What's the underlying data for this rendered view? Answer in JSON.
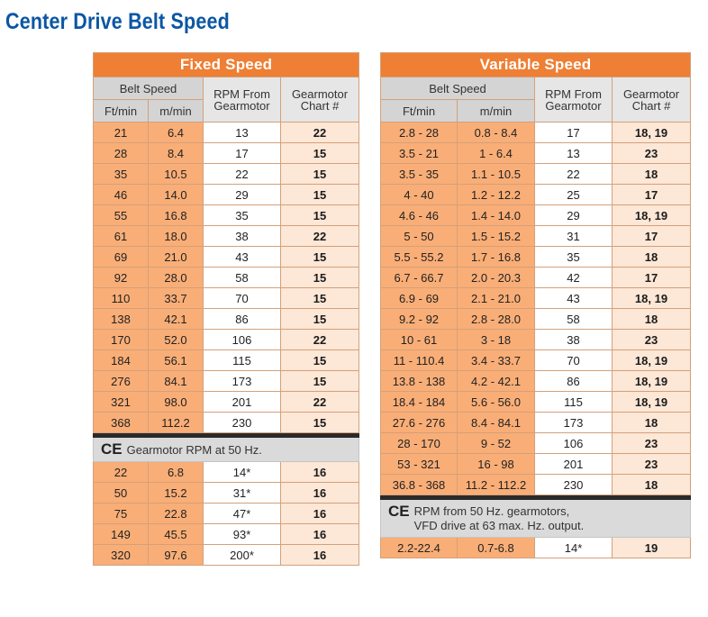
{
  "page_title": "Center Drive Belt Speed",
  "fixed": {
    "title": "Fixed Speed",
    "header": {
      "belt_speed": "Belt Speed",
      "col_ft": "Ft/min",
      "col_m": "m/min",
      "rpm": "RPM From Gearmotor",
      "chart": "Gearmotor Chart #"
    },
    "rows": [
      [
        "21",
        "6.4",
        "13",
        "22"
      ],
      [
        "28",
        "8.4",
        "17",
        "15"
      ],
      [
        "35",
        "10.5",
        "22",
        "15"
      ],
      [
        "46",
        "14.0",
        "29",
        "15"
      ],
      [
        "55",
        "16.8",
        "35",
        "15"
      ],
      [
        "61",
        "18.0",
        "38",
        "22"
      ],
      [
        "69",
        "21.0",
        "43",
        "15"
      ],
      [
        "92",
        "28.0",
        "58",
        "15"
      ],
      [
        "110",
        "33.7",
        "70",
        "15"
      ],
      [
        "138",
        "42.1",
        "86",
        "15"
      ],
      [
        "170",
        "52.0",
        "106",
        "22"
      ],
      [
        "184",
        "56.1",
        "115",
        "15"
      ],
      [
        "276",
        "84.1",
        "173",
        "15"
      ],
      [
        "321",
        "98.0",
        "201",
        "22"
      ],
      [
        "368",
        "112.2",
        "230",
        "15"
      ]
    ],
    "ce_symbol": "CE",
    "note": "Gearmotor RPM at 50 Hz.",
    "ce_rows": [
      [
        "22",
        "6.8",
        "14*",
        "16"
      ],
      [
        "50",
        "15.2",
        "31*",
        "16"
      ],
      [
        "75",
        "22.8",
        "47*",
        "16"
      ],
      [
        "149",
        "45.5",
        "93*",
        "16"
      ],
      [
        "320",
        "97.6",
        "200*",
        "16"
      ]
    ]
  },
  "variable": {
    "title": "Variable Speed",
    "header": {
      "belt_speed": "Belt Speed",
      "col_ft": "Ft/min",
      "col_m": "m/min",
      "rpm": "RPM From Gearmotor",
      "chart": "Gearmotor Chart #"
    },
    "rows": [
      [
        "2.8 - 28",
        "0.8 - 8.4",
        "17",
        "18, 19"
      ],
      [
        "3.5 - 21",
        "1 - 6.4",
        "13",
        "23"
      ],
      [
        "3.5 - 35",
        "1.1 - 10.5",
        "22",
        "18"
      ],
      [
        "4 - 40",
        "1.2 - 12.2",
        "25",
        "17"
      ],
      [
        "4.6 - 46",
        "1.4 - 14.0",
        "29",
        "18, 19"
      ],
      [
        "5 - 50",
        "1.5 - 15.2",
        "31",
        "17"
      ],
      [
        "5.5 - 55.2",
        "1.7 - 16.8",
        "35",
        "18"
      ],
      [
        "6.7 - 66.7",
        "2.0 - 20.3",
        "42",
        "17"
      ],
      [
        "6.9 - 69",
        "2.1 - 21.0",
        "43",
        "18, 19"
      ],
      [
        "9.2 - 92",
        "2.8 - 28.0",
        "58",
        "18"
      ],
      [
        "10 - 61",
        "3 - 18",
        "38",
        "23"
      ],
      [
        "11 - 110.4",
        "3.4 - 33.7",
        "70",
        "18, 19"
      ],
      [
        "13.8 - 138",
        "4.2 - 42.1",
        "86",
        "18, 19"
      ],
      [
        "18.4 - 184",
        "5.6 - 56.0",
        "115",
        "18, 19"
      ],
      [
        "27.6 - 276",
        "8.4 - 84.1",
        "173",
        "18"
      ],
      [
        "28 - 170",
        "9 - 52",
        "106",
        "23"
      ],
      [
        "53 - 321",
        "16 - 98",
        "201",
        "23"
      ],
      [
        "36.8 - 368",
        "11.2 - 112.2",
        "230",
        "18"
      ]
    ],
    "ce_symbol": "CE",
    "note_line1": "RPM from 50 Hz. gearmotors,",
    "note_line2": "VFD drive at 63 max. Hz. output.",
    "ce_rows": [
      [
        "2.2-22.4",
        "0.7-6.8",
        "14*",
        "19"
      ]
    ]
  }
}
